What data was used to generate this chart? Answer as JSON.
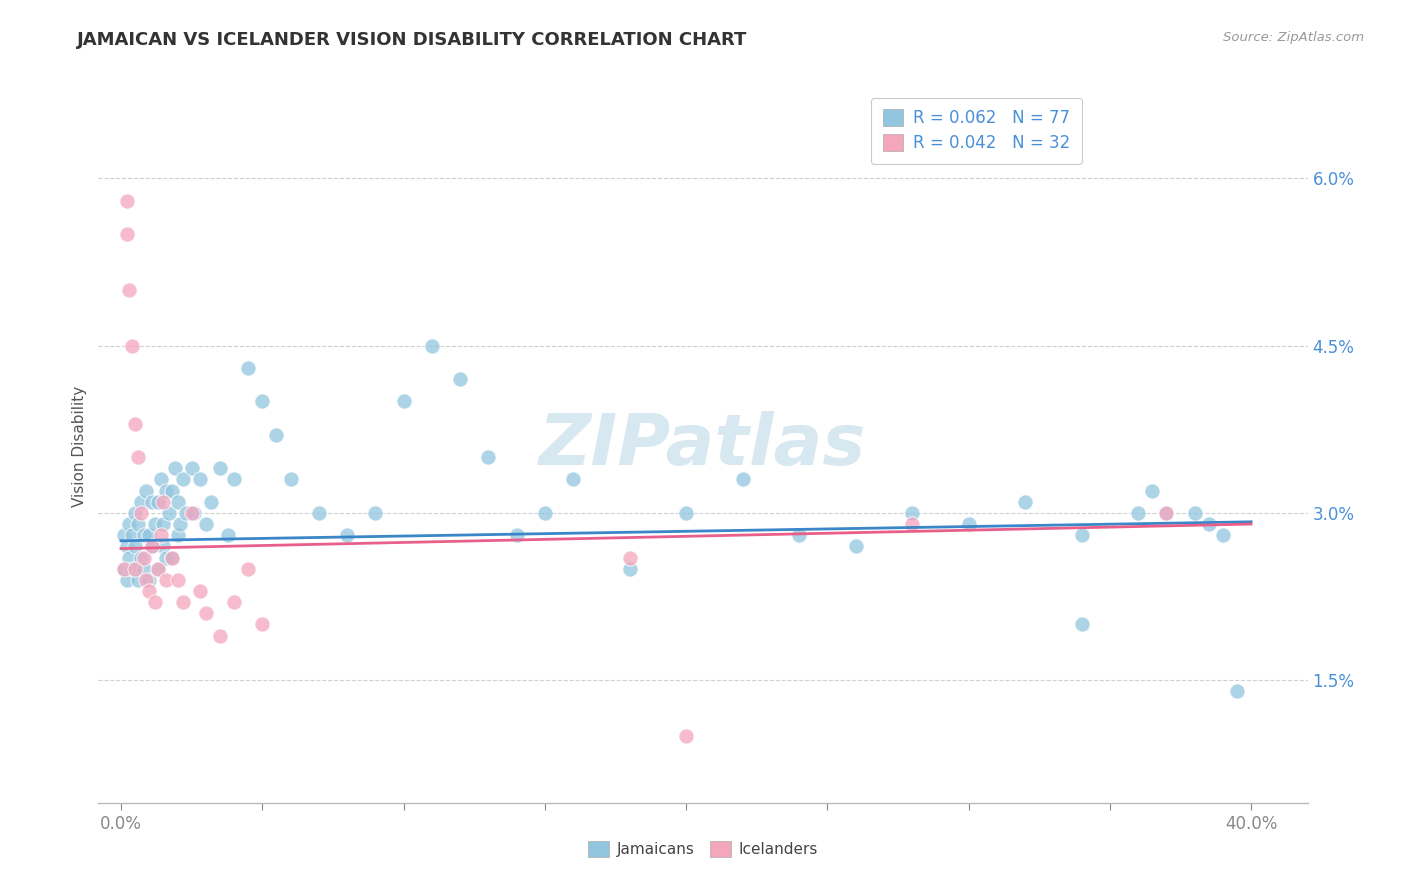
{
  "title": "JAMAICAN VS ICELANDER VISION DISABILITY CORRELATION CHART",
  "source": "Source: ZipAtlas.com",
  "ylabel": "Vision Disability",
  "ytick_vals": [
    0.015,
    0.03,
    0.045,
    0.06
  ],
  "ytick_labels": [
    "1.5%",
    "3.0%",
    "4.5%",
    "6.0%"
  ],
  "xtick_vals": [
    0.0,
    0.05,
    0.1,
    0.15,
    0.2,
    0.25,
    0.3,
    0.35,
    0.4
  ],
  "xlim": [
    -0.008,
    0.42
  ],
  "ylim": [
    0.004,
    0.068
  ],
  "legend_r1": "R = 0.062",
  "legend_n1": "N = 77",
  "legend_r2": "R = 0.042",
  "legend_n2": "N = 32",
  "blue_scatter_color": "#92c5de",
  "pink_scatter_color": "#f4a6bd",
  "blue_line_color": "#3a86c8",
  "pink_line_color": "#e8608a",
  "grid_color": "#d0d0d0",
  "tick_label_color": "#4a90d9",
  "title_color": "#333333",
  "source_color": "#999999",
  "ylabel_color": "#555555",
  "watermark_color": "#d8e8f0",
  "jamaicans_x": [
    0.001,
    0.001,
    0.002,
    0.002,
    0.003,
    0.003,
    0.004,
    0.004,
    0.005,
    0.005,
    0.006,
    0.006,
    0.007,
    0.007,
    0.008,
    0.008,
    0.009,
    0.01,
    0.01,
    0.011,
    0.011,
    0.012,
    0.013,
    0.013,
    0.014,
    0.015,
    0.015,
    0.016,
    0.016,
    0.017,
    0.018,
    0.018,
    0.019,
    0.02,
    0.02,
    0.021,
    0.022,
    0.023,
    0.025,
    0.026,
    0.028,
    0.03,
    0.032,
    0.035,
    0.038,
    0.04,
    0.045,
    0.05,
    0.055,
    0.06,
    0.07,
    0.08,
    0.09,
    0.1,
    0.11,
    0.12,
    0.13,
    0.14,
    0.15,
    0.16,
    0.18,
    0.2,
    0.22,
    0.24,
    0.26,
    0.28,
    0.3,
    0.32,
    0.34,
    0.36,
    0.37,
    0.38,
    0.385,
    0.39,
    0.395,
    0.365,
    0.34
  ],
  "jamaicans_y": [
    0.028,
    0.025,
    0.027,
    0.024,
    0.029,
    0.026,
    0.028,
    0.025,
    0.03,
    0.027,
    0.029,
    0.024,
    0.031,
    0.026,
    0.028,
    0.025,
    0.032,
    0.028,
    0.024,
    0.031,
    0.027,
    0.029,
    0.031,
    0.025,
    0.033,
    0.029,
    0.027,
    0.032,
    0.026,
    0.03,
    0.032,
    0.026,
    0.034,
    0.028,
    0.031,
    0.029,
    0.033,
    0.03,
    0.034,
    0.03,
    0.033,
    0.029,
    0.031,
    0.034,
    0.028,
    0.033,
    0.043,
    0.04,
    0.037,
    0.033,
    0.03,
    0.028,
    0.03,
    0.04,
    0.045,
    0.042,
    0.035,
    0.028,
    0.03,
    0.033,
    0.025,
    0.03,
    0.033,
    0.028,
    0.027,
    0.03,
    0.029,
    0.031,
    0.028,
    0.03,
    0.03,
    0.03,
    0.029,
    0.028,
    0.014,
    0.032,
    0.02
  ],
  "icelanders_x": [
    0.001,
    0.002,
    0.002,
    0.003,
    0.004,
    0.005,
    0.005,
    0.006,
    0.007,
    0.008,
    0.009,
    0.01,
    0.011,
    0.012,
    0.013,
    0.014,
    0.015,
    0.016,
    0.018,
    0.02,
    0.022,
    0.025,
    0.028,
    0.03,
    0.035,
    0.04,
    0.045,
    0.05,
    0.18,
    0.28,
    0.37,
    0.2
  ],
  "icelanders_y": [
    0.025,
    0.058,
    0.055,
    0.05,
    0.045,
    0.038,
    0.025,
    0.035,
    0.03,
    0.026,
    0.024,
    0.023,
    0.027,
    0.022,
    0.025,
    0.028,
    0.031,
    0.024,
    0.026,
    0.024,
    0.022,
    0.03,
    0.023,
    0.021,
    0.019,
    0.022,
    0.025,
    0.02,
    0.026,
    0.029,
    0.03,
    0.01
  ]
}
